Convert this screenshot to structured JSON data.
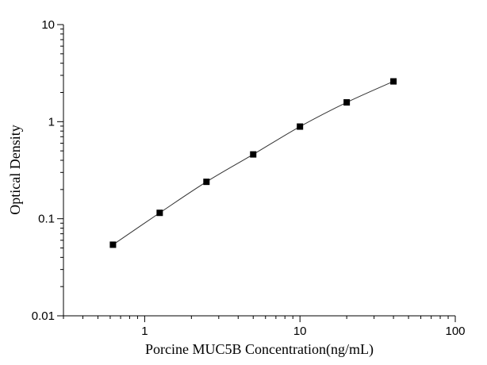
{
  "chart_data": {
    "type": "line",
    "title": "",
    "xlabel": "Porcine MUC5B Concentration(ng/mL)",
    "ylabel": "Optical Density",
    "x_scale": "log",
    "y_scale": "log",
    "xlim": [
      0.3,
      100
    ],
    "ylim": [
      0.01,
      10
    ],
    "x_ticks": [
      "1",
      "10",
      "100"
    ],
    "y_ticks": [
      "0.01",
      "0.1",
      "1",
      "10"
    ],
    "grid": false,
    "series": [
      {
        "x": [
          0.625,
          1.25,
          2.5,
          5,
          10,
          20,
          40
        ],
        "y": [
          0.054,
          0.115,
          0.24,
          0.46,
          0.89,
          1.58,
          2.6
        ],
        "marker": "square",
        "color": "#000000"
      }
    ]
  }
}
